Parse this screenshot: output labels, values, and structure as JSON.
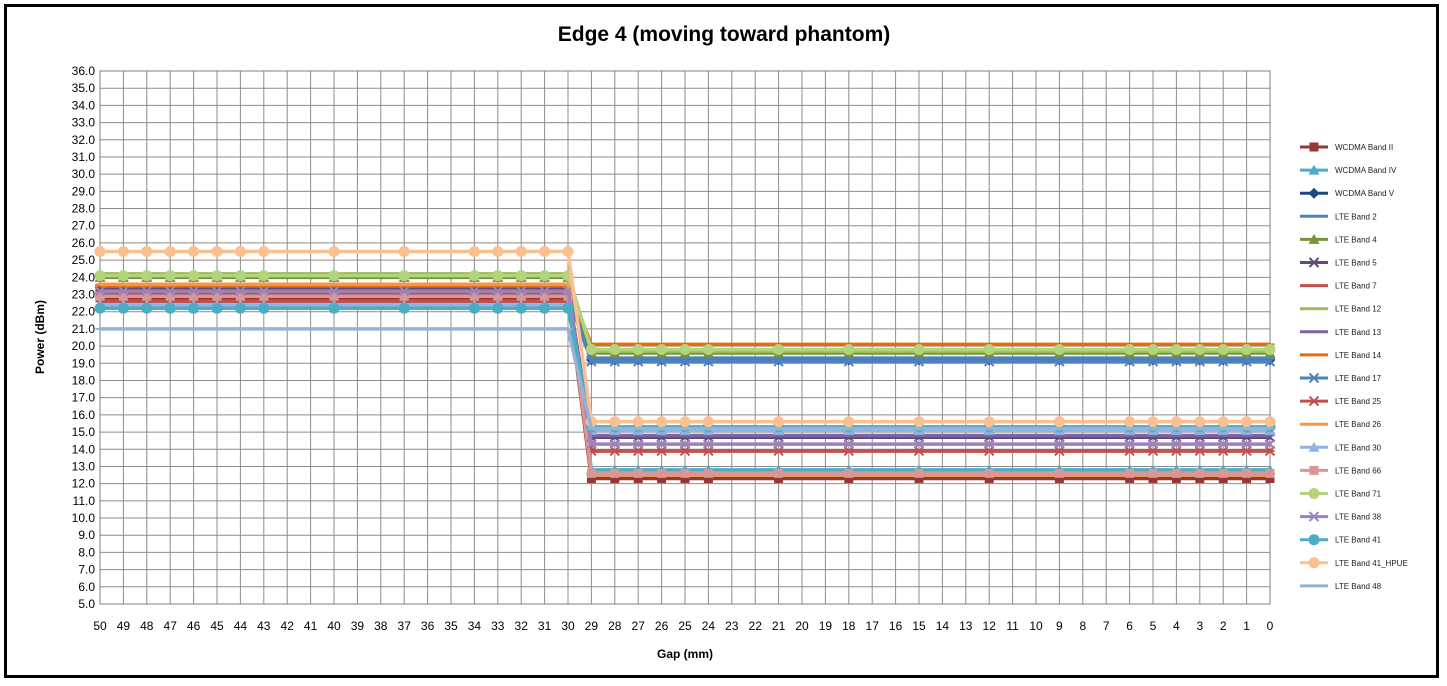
{
  "chart_data": {
    "type": "line",
    "title": "Edge 4 (moving toward phantom)",
    "xlabel": "Gap (mm)",
    "ylabel": "Power (dBm)",
    "x_ticks": [
      50,
      49,
      48,
      47,
      46,
      45,
      44,
      43,
      42,
      41,
      40,
      39,
      38,
      37,
      36,
      35,
      34,
      33,
      32,
      31,
      30,
      29,
      28,
      27,
      26,
      25,
      24,
      23,
      22,
      21,
      20,
      19,
      18,
      17,
      16,
      15,
      14,
      13,
      12,
      11,
      10,
      9,
      8,
      7,
      6,
      5,
      4,
      3,
      2,
      1,
      0
    ],
    "x_reversed": true,
    "xlim": [
      0,
      50
    ],
    "ylim": [
      5.0,
      36.0
    ],
    "y_tick_step": 1.0,
    "grid": true,
    "legend_position": "right",
    "x": [
      50,
      49,
      48,
      47,
      46,
      45,
      44,
      43,
      40,
      37,
      34,
      33,
      32,
      31,
      30,
      29,
      28,
      27,
      26,
      25,
      24,
      21,
      18,
      15,
      12,
      9,
      6,
      5,
      4,
      3,
      2,
      1,
      0
    ],
    "series": [
      {
        "name": "WCDMA Band II",
        "color": "#953735",
        "marker": "square",
        "far": 22.8,
        "near": 12.3
      },
      {
        "name": "WCDMA Band IV",
        "color": "#4BACC6",
        "marker": "triangle",
        "far": 23.1,
        "near": 12.8
      },
      {
        "name": "WCDMA Band V",
        "color": "#1F497D",
        "marker": "diamond",
        "far": 23.4,
        "near": 19.2
      },
      {
        "name": "LTE Band 2",
        "color": "#4F81BD",
        "marker": "dash",
        "far": 23.3,
        "near": 19.3
      },
      {
        "name": "LTE Band 4",
        "color": "#77933C",
        "marker": "triangle",
        "far": 24.0,
        "near": 19.6
      },
      {
        "name": "LTE Band 5",
        "color": "#604A7B",
        "marker": "x",
        "far": 23.3,
        "near": 14.7
      },
      {
        "name": "LTE Band 7",
        "color": "#C0504D",
        "marker": "dash",
        "far": 22.6,
        "near": 13.9
      },
      {
        "name": "LTE Band 12",
        "color": "#9BBB59",
        "marker": "dash",
        "far": 24.2,
        "near": 19.7
      },
      {
        "name": "LTE Band 13",
        "color": "#8064A2",
        "marker": "dash",
        "far": 23.0,
        "near": 14.8
      },
      {
        "name": "LTE Band 14",
        "color": "#E46C0A",
        "marker": "dash",
        "far": 23.5,
        "near": 20.1
      },
      {
        "name": "LTE Band 17",
        "color": "#4F81BD",
        "marker": "x",
        "far": 22.9,
        "near": 19.1
      },
      {
        "name": "LTE Band 25",
        "color": "#C0504D",
        "marker": "x",
        "far": 23.0,
        "near": 13.9
      },
      {
        "name": "LTE Band 26",
        "color": "#F79646",
        "marker": "dash",
        "far": 23.6,
        "near": 12.5
      },
      {
        "name": "LTE Band 30",
        "color": "#8EB4E3",
        "marker": "triangle",
        "far": 22.4,
        "near": 15.1
      },
      {
        "name": "LTE Band 66",
        "color": "#D99694",
        "marker": "square",
        "far": 22.9,
        "near": 12.6
      },
      {
        "name": "LTE Band 71",
        "color": "#B3D47C",
        "marker": "circle",
        "far": 24.1,
        "near": 19.8
      },
      {
        "name": "LTE Band 38",
        "color": "#9C82B9",
        "marker": "x",
        "far": 23.2,
        "near": 14.3
      },
      {
        "name": "LTE Band 41",
        "color": "#4BACC6",
        "marker": "circle",
        "far": 22.2,
        "near": 15.3
      },
      {
        "name": "LTE Band 41_HPUE",
        "color": "#FAC090",
        "marker": "circle",
        "far": 25.5,
        "near": 15.6
      },
      {
        "name": "LTE Band 48",
        "color": "#95B3D7",
        "marker": "dash",
        "far": 21.0,
        "near": 15.2
      }
    ]
  }
}
